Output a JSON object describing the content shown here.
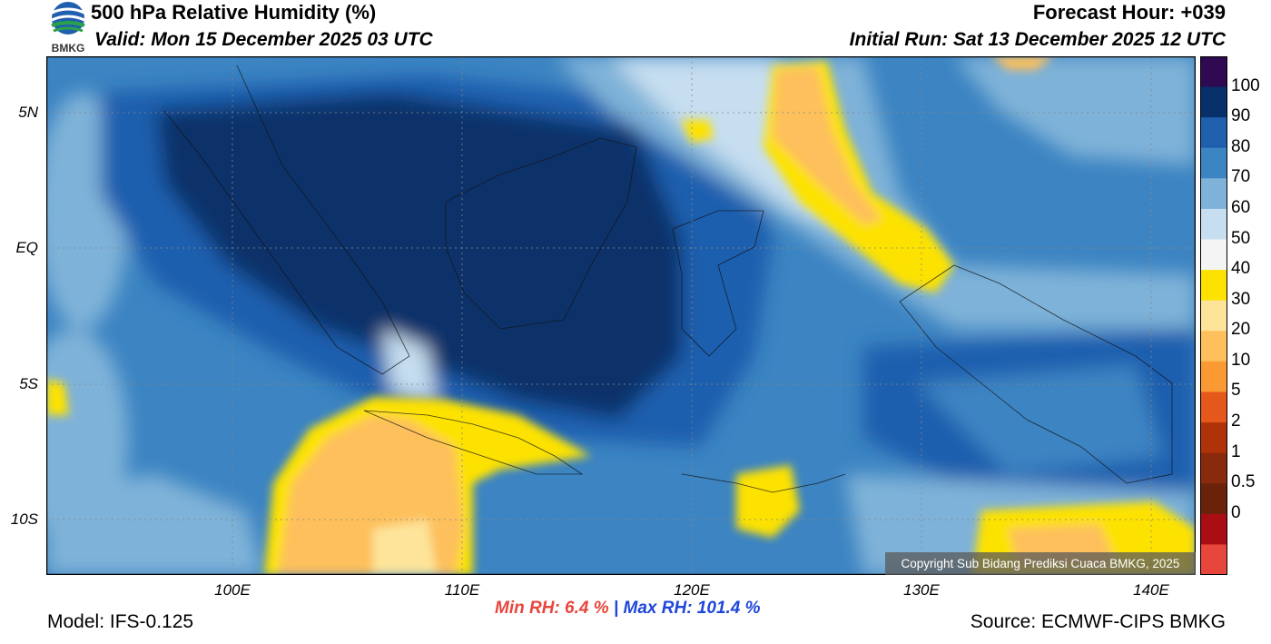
{
  "header": {
    "title": "500 hPa Relative Humidity (%)",
    "valid": "Valid: Mon 15 December 2025 03 UTC",
    "forecast_hour": "Forecast Hour: +039",
    "initial_run": "Initial Run: Sat 13 December 2025 12 UTC"
  },
  "logo": {
    "text": "BMKG"
  },
  "axes": {
    "lat_labels": [
      "5N",
      "EQ",
      "5S",
      "10S"
    ],
    "lon_labels": [
      "100E",
      "110E",
      "120E",
      "130E",
      "140E"
    ]
  },
  "colorbar": {
    "labels": [
      "100",
      "90",
      "80",
      "70",
      "60",
      "50",
      "40",
      "30",
      "20",
      "10",
      "5",
      "2",
      "1",
      "0.5",
      "0"
    ],
    "colors": [
      "#2f0a52",
      "#08306b",
      "#1f5fae",
      "#3c84c2",
      "#7fb2d8",
      "#c6deef",
      "#f4f4f4",
      "#fde200",
      "#fde49a",
      "#fdc05c",
      "#fb9933",
      "#e4581c",
      "#b03208",
      "#8a2a0c",
      "#6a230a",
      "#a80e14",
      "#e8453c"
    ]
  },
  "stats": {
    "min_label": "Min RH:",
    "min_value": "6.4 %",
    "separator": "|",
    "max_label": "Max RH:",
    "max_value": "101.4 %"
  },
  "footer": {
    "model": "Model: IFS-0.125",
    "source": "Source: ECMWF-CIPS BMKG",
    "copyright": "Copyright Sub Bidang Prediksi Cuaca BMKG, 2025"
  }
}
